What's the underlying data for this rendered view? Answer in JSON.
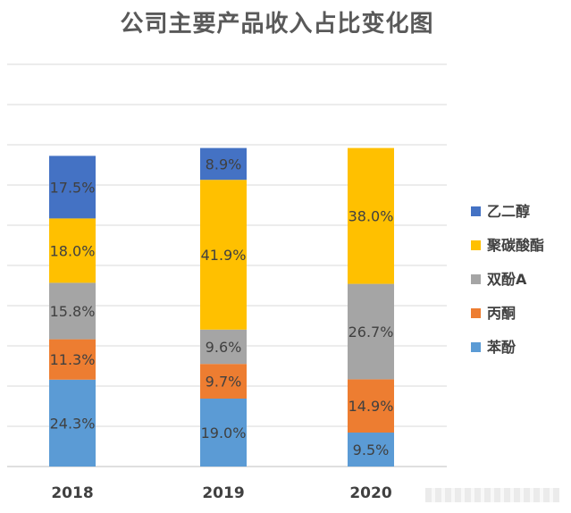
{
  "chart_data": {
    "type": "bar",
    "stacked": true,
    "title": "公司主要产品收入占比变化图",
    "categories": [
      "2018",
      "2019",
      "2020"
    ],
    "ylim": [
      0,
      100
    ],
    "grid": true,
    "legend_position": "right",
    "series": [
      {
        "name": "苯酚",
        "color": "#5B9BD5",
        "values": [
          24.3,
          19.0,
          9.5
        ],
        "labels": [
          "24.3%",
          "19.0%",
          "9.5%"
        ]
      },
      {
        "name": "丙酮",
        "color": "#ED7D31",
        "values": [
          11.3,
          9.7,
          14.9
        ],
        "labels": [
          "11.3%",
          "9.7%",
          "14.9%"
        ]
      },
      {
        "name": "双酚A",
        "color": "#A5A5A5",
        "values": [
          15.8,
          9.6,
          26.7
        ],
        "labels": [
          "15.8%",
          "9.6%",
          "26.7%"
        ]
      },
      {
        "name": "聚碳酸酯",
        "color": "#FFC000",
        "values": [
          18.0,
          41.9,
          38.0
        ],
        "labels": [
          "18.0%",
          "41.9%",
          "38.0%"
        ]
      },
      {
        "name": "乙二醇",
        "color": "#4472C4",
        "values": [
          17.5,
          8.9,
          null
        ],
        "labels": [
          "17.5%",
          "8.9%",
          ""
        ]
      }
    ],
    "legend_order": [
      "乙二醇",
      "聚碳酸酯",
      "双酚A",
      "丙酮",
      "苯酚"
    ]
  }
}
